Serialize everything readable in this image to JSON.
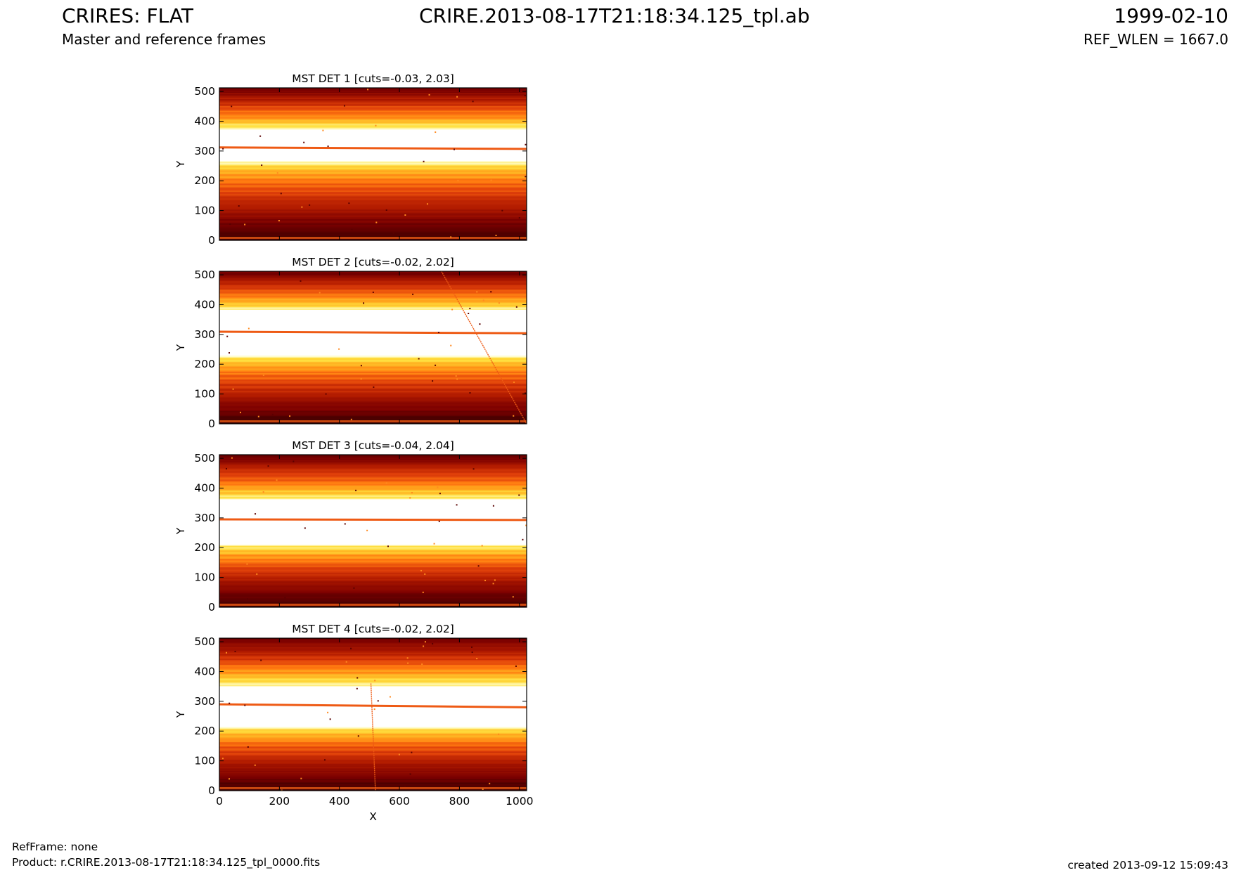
{
  "header": {
    "title": "CRIRES: FLAT",
    "subtitle": "Master and reference frames",
    "filename": "CRIRE.2013-08-17T21:18:34.125_tpl.ab",
    "date": "1999-02-10",
    "ref_wlen": "REF_WLEN = 1667.0"
  },
  "footer": {
    "refframe": "RefFrame: none",
    "product": "Product: r.CRIRE.2013-08-17T21:18:34.125_tpl_0000.fits",
    "created": "created 2013-09-12 15:09:43"
  },
  "colors": {
    "colormap": [
      "#3a0000",
      "#7a0000",
      "#b01a00",
      "#e0400a",
      "#ff7a10",
      "#ffb020",
      "#ffe040",
      "#fffcc8",
      "#ffffff"
    ],
    "trace_line": "#ee5a14"
  },
  "chart_data": [
    {
      "type": "heatmap",
      "title": "MST DET 1 [cuts=-0.03, 2.03]",
      "ylabel": "Y",
      "xlabel": "",
      "xlim": [
        0,
        1024
      ],
      "ylim": [
        0,
        512
      ],
      "yticks": [
        0,
        100,
        200,
        300,
        400,
        500
      ],
      "xticks": [],
      "cuts": [
        -0.03,
        2.03
      ],
      "bright_band": [
        265,
        370
      ],
      "trace_line": [
        [
          0,
          312
        ],
        [
          1024,
          307
        ]
      ]
    },
    {
      "type": "heatmap",
      "title": "MST DET 2 [cuts=-0.02, 2.02]",
      "ylabel": "Y",
      "xlabel": "",
      "xlim": [
        0,
        1024
      ],
      "ylim": [
        0,
        512
      ],
      "yticks": [
        0,
        100,
        200,
        300,
        400,
        500
      ],
      "xticks": [],
      "cuts": [
        -0.02,
        2.02
      ],
      "bright_band": [
        230,
        380
      ],
      "trace_line": [
        [
          0,
          309
        ],
        [
          1024,
          304
        ]
      ],
      "streak": [
        [
          740,
          512
        ],
        [
          1024,
          0
        ]
      ]
    },
    {
      "type": "heatmap",
      "title": "MST DET 3 [cuts=-0.04, 2.04]",
      "ylabel": "Y",
      "xlabel": "",
      "xlim": [
        0,
        1024
      ],
      "ylim": [
        0,
        512
      ],
      "yticks": [
        0,
        100,
        200,
        300,
        400,
        500
      ],
      "xticks": [],
      "cuts": [
        -0.04,
        2.04
      ],
      "bright_band": [
        210,
        360
      ],
      "trace_line": [
        [
          0,
          295
        ],
        [
          1024,
          293
        ]
      ]
    },
    {
      "type": "heatmap",
      "title": "MST DET 4 [cuts=-0.02, 2.02]",
      "ylabel": "Y",
      "xlabel": "X",
      "xlim": [
        0,
        1024
      ],
      "ylim": [
        0,
        512
      ],
      "yticks": [
        0,
        100,
        200,
        300,
        400,
        500
      ],
      "xticks": [
        0,
        200,
        400,
        600,
        800,
        1000
      ],
      "cuts": [
        -0.02,
        2.02
      ],
      "bright_band": [
        215,
        350
      ],
      "trace_line": [
        [
          0,
          290
        ],
        [
          1024,
          280
        ]
      ],
      "streak": [
        [
          505,
          360
        ],
        [
          520,
          0
        ]
      ]
    }
  ]
}
